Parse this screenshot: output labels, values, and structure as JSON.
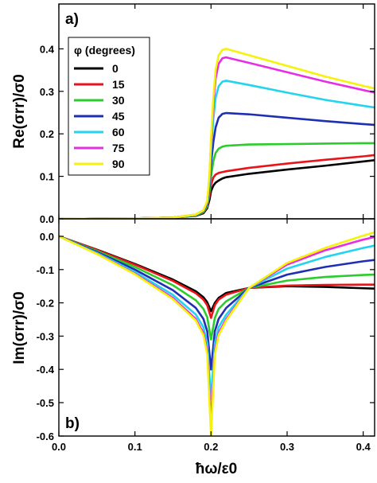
{
  "chart_data": [
    {
      "panel": "a)",
      "type": "line",
      "ylabel": "Re(σrr)/σ0",
      "ylim": [
        0,
        0.43
      ],
      "yticks": [
        "0.0",
        "0.1",
        "0.2",
        "0.3",
        "0.4"
      ],
      "xlim": [
        0,
        0.415
      ],
      "legend_title": "φ (degrees)",
      "legend_position": "upper-left",
      "series": [
        {
          "name": "0",
          "color": "#000000",
          "x": [
            0,
            0.05,
            0.1,
            0.15,
            0.18,
            0.19,
            0.195,
            0.198,
            0.2,
            0.203,
            0.206,
            0.21,
            0.215,
            0.22,
            0.25,
            0.3,
            0.35,
            0.4,
            0.415
          ],
          "y": [
            0,
            0.0005,
            0.001,
            0.003,
            0.007,
            0.013,
            0.025,
            0.045,
            0.065,
            0.078,
            0.085,
            0.09,
            0.095,
            0.098,
            0.106,
            0.116,
            0.125,
            0.135,
            0.138
          ]
        },
        {
          "name": "15",
          "color": "#e8141a",
          "x": [
            0,
            0.05,
            0.1,
            0.15,
            0.18,
            0.19,
            0.195,
            0.198,
            0.2,
            0.203,
            0.206,
            0.21,
            0.215,
            0.22,
            0.25,
            0.3,
            0.35,
            0.4,
            0.415
          ],
          "y": [
            0,
            0.0005,
            0.001,
            0.003,
            0.008,
            0.015,
            0.028,
            0.055,
            0.08,
            0.097,
            0.104,
            0.108,
            0.11,
            0.112,
            0.12,
            0.13,
            0.139,
            0.147,
            0.15
          ]
        },
        {
          "name": "30",
          "color": "#2bcc2b",
          "x": [
            0,
            0.05,
            0.1,
            0.15,
            0.18,
            0.19,
            0.195,
            0.198,
            0.2,
            0.203,
            0.206,
            0.21,
            0.215,
            0.22,
            0.25,
            0.3,
            0.35,
            0.4,
            0.415
          ],
          "y": [
            0,
            0.0005,
            0.001,
            0.003,
            0.008,
            0.016,
            0.03,
            0.065,
            0.1,
            0.135,
            0.155,
            0.165,
            0.17,
            0.172,
            0.175,
            0.176,
            0.177,
            0.178,
            0.178
          ]
        },
        {
          "name": "45",
          "color": "#1f2fb4",
          "x": [
            0,
            0.05,
            0.1,
            0.15,
            0.18,
            0.19,
            0.195,
            0.198,
            0.2,
            0.203,
            0.206,
            0.21,
            0.215,
            0.22,
            0.25,
            0.3,
            0.35,
            0.4,
            0.415
          ],
          "y": [
            0,
            0.0005,
            0.001,
            0.003,
            0.009,
            0.018,
            0.035,
            0.08,
            0.13,
            0.18,
            0.215,
            0.238,
            0.247,
            0.249,
            0.246,
            0.238,
            0.23,
            0.223,
            0.221
          ]
        },
        {
          "name": "60",
          "color": "#22d4ee",
          "x": [
            0,
            0.05,
            0.1,
            0.15,
            0.18,
            0.19,
            0.195,
            0.198,
            0.2,
            0.203,
            0.206,
            0.21,
            0.215,
            0.22,
            0.25,
            0.3,
            0.35,
            0.4,
            0.415
          ],
          "y": [
            0,
            0.0005,
            0.001,
            0.003,
            0.009,
            0.019,
            0.038,
            0.09,
            0.16,
            0.235,
            0.285,
            0.312,
            0.323,
            0.325,
            0.315,
            0.297,
            0.28,
            0.266,
            0.262
          ]
        },
        {
          "name": "75",
          "color": "#e62ee6",
          "x": [
            0,
            0.05,
            0.1,
            0.15,
            0.18,
            0.19,
            0.195,
            0.198,
            0.2,
            0.203,
            0.206,
            0.21,
            0.215,
            0.22,
            0.25,
            0.3,
            0.35,
            0.4,
            0.415
          ],
          "y": [
            0,
            0.0005,
            0.001,
            0.003,
            0.01,
            0.02,
            0.04,
            0.1,
            0.18,
            0.27,
            0.33,
            0.365,
            0.378,
            0.38,
            0.367,
            0.345,
            0.323,
            0.303,
            0.297
          ]
        },
        {
          "name": "90",
          "color": "#f5f20c",
          "x": [
            0,
            0.05,
            0.1,
            0.15,
            0.18,
            0.19,
            0.195,
            0.198,
            0.2,
            0.203,
            0.206,
            0.21,
            0.215,
            0.22,
            0.25,
            0.3,
            0.35,
            0.4,
            0.415
          ],
          "y": [
            0,
            0.0005,
            0.001,
            0.003,
            0.01,
            0.02,
            0.042,
            0.105,
            0.19,
            0.285,
            0.35,
            0.385,
            0.398,
            0.4,
            0.385,
            0.36,
            0.335,
            0.313,
            0.307
          ]
        }
      ]
    },
    {
      "panel": "b)",
      "type": "line",
      "ylabel": "Im(σrr)/σ0",
      "xlabel": "ħω/ε0",
      "ylim": [
        -0.6,
        0.04
      ],
      "yticks": [
        "0.0",
        "-0.1",
        "-0.2",
        "-0.3",
        "-0.4",
        "-0.5",
        "-0.6"
      ],
      "xlim": [
        0,
        0.415
      ],
      "xticks": [
        "0.0",
        "0.1",
        "0.2",
        "0.3",
        "0.4"
      ],
      "series": [
        {
          "name": "0",
          "color": "#000000",
          "x": [
            0,
            0.05,
            0.1,
            0.15,
            0.18,
            0.19,
            0.195,
            0.2,
            0.205,
            0.21,
            0.22,
            0.25,
            0.3,
            0.35,
            0.4,
            0.415
          ],
          "y": [
            0,
            -0.04,
            -0.083,
            -0.13,
            -0.165,
            -0.183,
            -0.198,
            -0.225,
            -0.2,
            -0.185,
            -0.17,
            -0.155,
            -0.15,
            -0.152,
            -0.156,
            -0.157
          ]
        },
        {
          "name": "15",
          "color": "#e8141a",
          "x": [
            0,
            0.05,
            0.1,
            0.15,
            0.18,
            0.19,
            0.195,
            0.2,
            0.205,
            0.21,
            0.22,
            0.25,
            0.3,
            0.35,
            0.4,
            0.415
          ],
          "y": [
            0,
            -0.041,
            -0.085,
            -0.134,
            -0.171,
            -0.19,
            -0.207,
            -0.245,
            -0.207,
            -0.19,
            -0.175,
            -0.155,
            -0.148,
            -0.146,
            -0.145,
            -0.145
          ]
        },
        {
          "name": "30",
          "color": "#2bcc2b",
          "x": [
            0,
            0.05,
            0.1,
            0.15,
            0.18,
            0.19,
            0.195,
            0.2,
            0.205,
            0.21,
            0.22,
            0.25,
            0.3,
            0.35,
            0.4,
            0.415
          ],
          "y": [
            0,
            -0.044,
            -0.092,
            -0.147,
            -0.192,
            -0.218,
            -0.243,
            -0.31,
            -0.245,
            -0.218,
            -0.195,
            -0.155,
            -0.133,
            -0.122,
            -0.116,
            -0.115
          ]
        },
        {
          "name": "45",
          "color": "#1f2fb4",
          "x": [
            0,
            0.05,
            0.1,
            0.15,
            0.18,
            0.19,
            0.195,
            0.2,
            0.205,
            0.21,
            0.22,
            0.25,
            0.3,
            0.35,
            0.4,
            0.415
          ],
          "y": [
            0,
            -0.047,
            -0.1,
            -0.162,
            -0.215,
            -0.248,
            -0.285,
            -0.4,
            -0.285,
            -0.248,
            -0.215,
            -0.155,
            -0.115,
            -0.092,
            -0.075,
            -0.071
          ]
        },
        {
          "name": "60",
          "color": "#22d4ee",
          "x": [
            0,
            0.05,
            0.1,
            0.15,
            0.18,
            0.19,
            0.195,
            0.2,
            0.205,
            0.21,
            0.22,
            0.25,
            0.3,
            0.35,
            0.4,
            0.415
          ],
          "y": [
            0,
            -0.05,
            -0.107,
            -0.176,
            -0.235,
            -0.273,
            -0.322,
            -0.49,
            -0.322,
            -0.273,
            -0.235,
            -0.155,
            -0.097,
            -0.062,
            -0.035,
            -0.028
          ]
        },
        {
          "name": "75",
          "color": "#e62ee6",
          "x": [
            0,
            0.05,
            0.1,
            0.15,
            0.18,
            0.19,
            0.195,
            0.2,
            0.205,
            0.21,
            0.22,
            0.25,
            0.3,
            0.35,
            0.4,
            0.415
          ],
          "y": [
            0,
            -0.052,
            -0.112,
            -0.185,
            -0.248,
            -0.29,
            -0.345,
            -0.56,
            -0.345,
            -0.29,
            -0.248,
            -0.155,
            -0.085,
            -0.042,
            -0.01,
            -0.002
          ]
        },
        {
          "name": "90",
          "color": "#f5f20c",
          "x": [
            0,
            0.05,
            0.1,
            0.15,
            0.18,
            0.19,
            0.195,
            0.2,
            0.205,
            0.21,
            0.22,
            0.25,
            0.3,
            0.35,
            0.4,
            0.415
          ],
          "y": [
            0,
            -0.053,
            -0.114,
            -0.189,
            -0.253,
            -0.297,
            -0.354,
            -0.6,
            -0.354,
            -0.297,
            -0.253,
            -0.155,
            -0.08,
            -0.035,
            0.002,
            0.012
          ]
        }
      ]
    }
  ]
}
